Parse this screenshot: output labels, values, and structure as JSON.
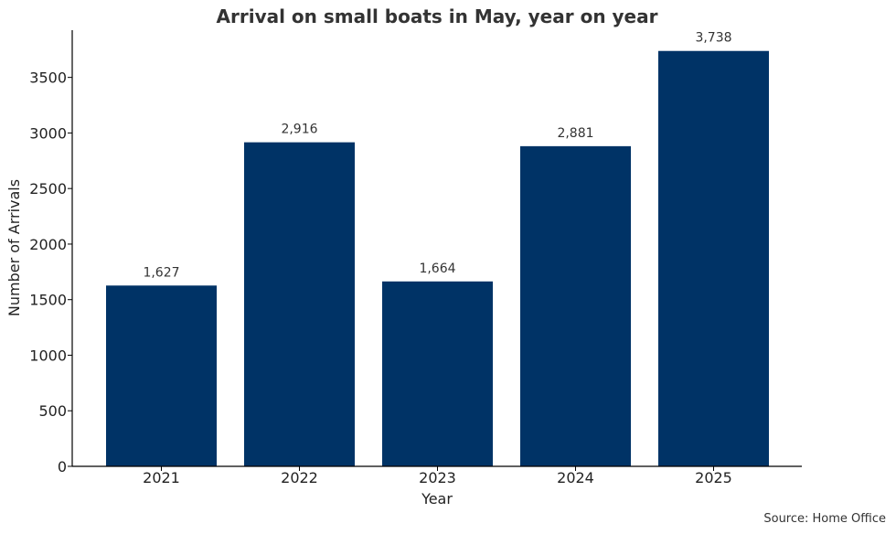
{
  "chart_data": {
    "type": "bar",
    "title": "Arrival on small boats in May, year on year",
    "xlabel": "Year",
    "ylabel": "Number of Arrivals",
    "categories": [
      "2021",
      "2022",
      "2023",
      "2024",
      "2025"
    ],
    "values": [
      1627,
      2916,
      1664,
      2881,
      3738
    ],
    "data_labels": [
      "1,627",
      "2,916",
      "1,664",
      "2,881",
      "3,738"
    ],
    "ylim": [
      0,
      3925
    ],
    "yticks": [
      0,
      500,
      1000,
      1500,
      2000,
      2500,
      3000,
      3500
    ],
    "bar_color": "#003366",
    "grid": false,
    "source": "Source: Home Office"
  }
}
